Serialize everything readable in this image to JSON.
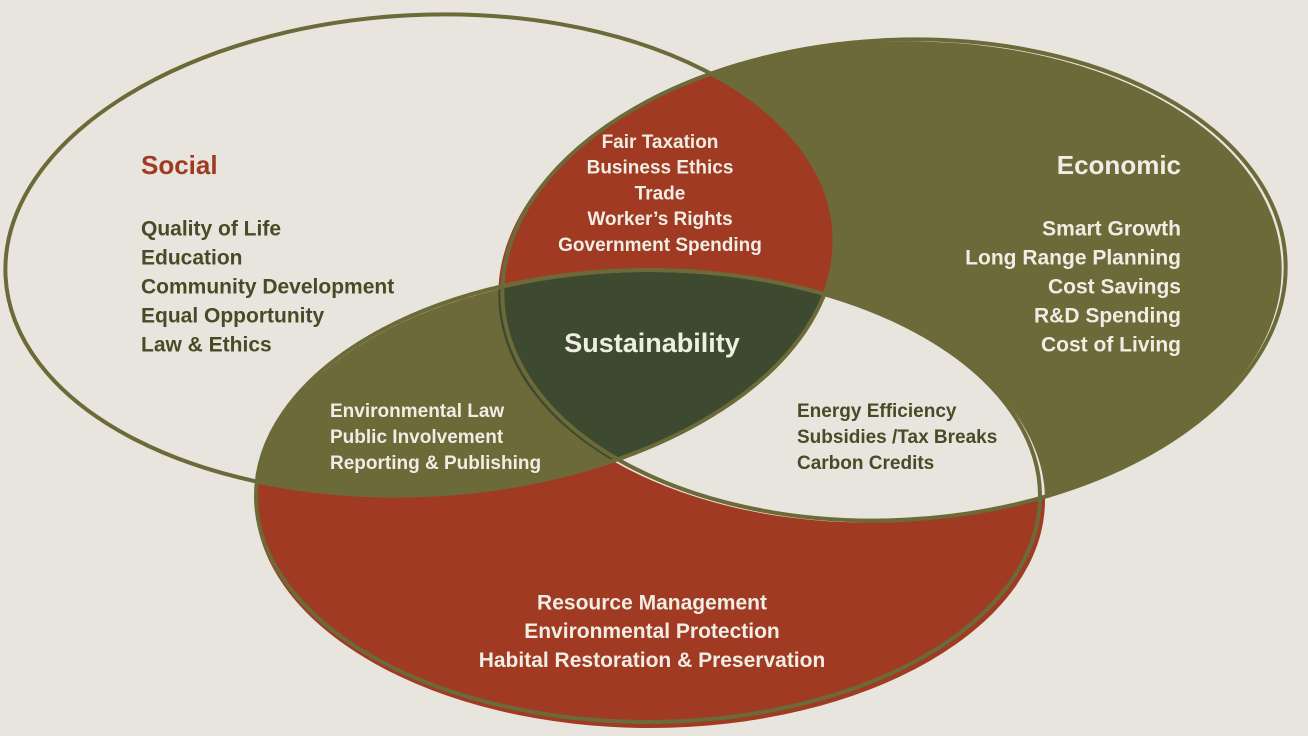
{
  "social": {
    "title": "Social",
    "items": [
      "Quality of Life",
      "Education",
      "Community Development",
      "Equal Opportunity",
      "Law & Ethics"
    ]
  },
  "economic": {
    "title": "Economic",
    "items": [
      "Smart Growth",
      "Long Range Planning",
      "Cost Savings",
      "R&D Spending",
      "Cost of Living"
    ]
  },
  "social_economic": {
    "items": [
      "Fair Taxation",
      "Business Ethics",
      "Trade",
      "Worker’s Rights",
      "Government Spending"
    ]
  },
  "center": {
    "label": "Sustainability"
  },
  "social_environmental": {
    "items": [
      "Environmental Law",
      "Public Involvement",
      "Reporting & Publishing"
    ]
  },
  "economic_environmental": {
    "items": [
      "Energy Efficiency",
      "Subsidies /Tax Breaks",
      "Carbon Credits"
    ]
  },
  "environmental": {
    "items": [
      "Resource Management",
      "Environmental Protection",
      "Habital Restoration & Preservation"
    ]
  }
}
